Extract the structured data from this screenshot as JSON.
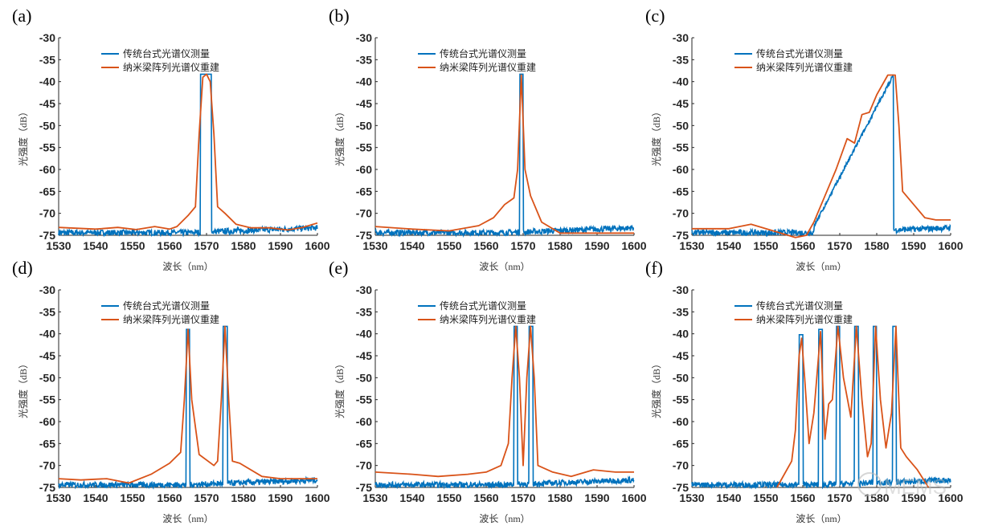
{
  "chart_data": [
    {
      "panel": "(a)",
      "type": "line",
      "xlabel": "波长（nm）",
      "ylabel": "光强度（dB）",
      "xlim": [
        1530,
        1600
      ],
      "ylim": [
        -75,
        -30
      ],
      "xticks": [
        1530,
        1540,
        1550,
        1560,
        1570,
        1580,
        1590,
        1600
      ],
      "yticks": [
        -30,
        -35,
        -40,
        -45,
        -50,
        -55,
        -60,
        -65,
        -70,
        -75
      ],
      "legend": [
        "传统台式光谱仪测量",
        "纳米梁阵列光谱仪重建"
      ],
      "legend_position": "top-center",
      "series": [
        {
          "name": "传统台式光谱仪测量",
          "color": "#0072BD",
          "noise_floor": [
            -74.4,
            -73.3
          ],
          "peaks": [
            [
              1568.3,
              1571.3,
              -38.3
            ]
          ]
        },
        {
          "name": "纳米梁阵列光谱仪重建",
          "color": "#D95319",
          "points": [
            [
              1530,
              -73.2
            ],
            [
              1540,
              -73.6
            ],
            [
              1546,
              -73.2
            ],
            [
              1551,
              -73.7
            ],
            [
              1556,
              -73
            ],
            [
              1560,
              -73.6
            ],
            [
              1562,
              -73
            ],
            [
              1565,
              -70.5
            ],
            [
              1567,
              -68.5
            ],
            [
              1568,
              -52
            ],
            [
              1569,
              -39
            ],
            [
              1570,
              -38.3
            ],
            [
              1571,
              -40
            ],
            [
              1572,
              -52
            ],
            [
              1573,
              -68.5
            ],
            [
              1575,
              -70
            ],
            [
              1578,
              -72.5
            ],
            [
              1582,
              -73.3
            ],
            [
              1587,
              -73.3
            ],
            [
              1592,
              -73.8
            ],
            [
              1596,
              -73.2
            ],
            [
              1600,
              -72.2
            ]
          ]
        }
      ]
    },
    {
      "panel": "(b)",
      "type": "line",
      "xlabel": "波长（nm）",
      "ylabel": "光强度（dB）",
      "xlim": [
        1530,
        1600
      ],
      "ylim": [
        -75,
        -30
      ],
      "xticks": [
        1530,
        1540,
        1550,
        1560,
        1570,
        1580,
        1590,
        1600
      ],
      "yticks": [
        -30,
        -35,
        -40,
        -45,
        -50,
        -55,
        -60,
        -65,
        -70,
        -75
      ],
      "legend": [
        "传统台式光谱仪测量",
        "纳米梁阵列光谱仪重建"
      ],
      "legend_position": "top-center",
      "series": [
        {
          "name": "传统台式光谱仪测量",
          "color": "#0072BD",
          "noise_floor": [
            -74.4,
            -73.3
          ],
          "peaks": [
            [
              1569,
              1570,
              -38.3
            ]
          ]
        },
        {
          "name": "纳米梁阵列光谱仪重建",
          "color": "#D95319",
          "points": [
            [
              1530,
              -73
            ],
            [
              1540,
              -73.6
            ],
            [
              1550,
              -74
            ],
            [
              1558,
              -72.8
            ],
            [
              1562,
              -71
            ],
            [
              1565,
              -68
            ],
            [
              1567.5,
              -66.5
            ],
            [
              1568.5,
              -60
            ],
            [
              1569.5,
              -38.5
            ],
            [
              1570.5,
              -60
            ],
            [
              1572,
              -66
            ],
            [
              1575,
              -72
            ],
            [
              1580,
              -74.5
            ],
            [
              1590,
              -74.5
            ],
            [
              1600,
              -74.5
            ]
          ]
        }
      ]
    },
    {
      "panel": "(c)",
      "type": "line",
      "xlabel": "波长（nm）",
      "ylabel": "光强度（dB）",
      "xlim": [
        1530,
        1600
      ],
      "ylim": [
        -75,
        -30
      ],
      "xticks": [
        1530,
        1540,
        1550,
        1560,
        1570,
        1580,
        1590,
        1600
      ],
      "yticks": [
        -30,
        -35,
        -40,
        -45,
        -50,
        -55,
        -60,
        -65,
        -70,
        -75
      ],
      "legend": [
        "传统台式光谱仪测量",
        "纳米梁阵列光谱仪重建"
      ],
      "legend_position": "top-center",
      "series": [
        {
          "name": "传统台式光谱仪测量",
          "color": "#0072BD",
          "noise_floor": [
            -74.4,
            -73.3
          ],
          "ramp": [
            1563,
            -73,
            1584.5,
            -38.5
          ]
        },
        {
          "name": "纳米梁阵列光谱仪重建",
          "color": "#D95319",
          "points": [
            [
              1530,
              -73.5
            ],
            [
              1540,
              -73.5
            ],
            [
              1546,
              -72.5
            ],
            [
              1552,
              -74
            ],
            [
              1558,
              -75.5
            ],
            [
              1561,
              -75
            ],
            [
              1563,
              -72
            ],
            [
              1566,
              -66
            ],
            [
              1569,
              -60
            ],
            [
              1572,
              -53
            ],
            [
              1574,
              -54
            ],
            [
              1576,
              -47.5
            ],
            [
              1578,
              -47
            ],
            [
              1580,
              -43
            ],
            [
              1583,
              -38.5
            ],
            [
              1585,
              -38.5
            ],
            [
              1586,
              -50
            ],
            [
              1587,
              -65
            ],
            [
              1590,
              -68
            ],
            [
              1593,
              -71
            ],
            [
              1596,
              -71.5
            ],
            [
              1600,
              -71.5
            ]
          ]
        }
      ]
    },
    {
      "panel": "(d)",
      "type": "line",
      "xlabel": "波长（nm）",
      "ylabel": "光强度（dB）",
      "xlim": [
        1530,
        1600
      ],
      "ylim": [
        -75,
        -30
      ],
      "xticks": [
        1530,
        1540,
        1550,
        1560,
        1570,
        1580,
        1590,
        1600
      ],
      "yticks": [
        -30,
        -35,
        -40,
        -45,
        -50,
        -55,
        -60,
        -65,
        -70,
        -75
      ],
      "legend": [
        "传统台式光谱仪测量",
        "纳米梁阵列光谱仪重建"
      ],
      "legend_position": "top-center",
      "series": [
        {
          "name": "传统台式光谱仪测量",
          "color": "#0072BD",
          "noise_floor": [
            -74.4,
            -73.3
          ],
          "peaks": [
            [
              1564.5,
              1565.5,
              -39
            ],
            [
              1574.5,
              1575.7,
              -38.3
            ]
          ]
        },
        {
          "name": "纳米梁阵列光谱仪重建",
          "color": "#D95319",
          "points": [
            [
              1530,
              -73
            ],
            [
              1536,
              -73.3
            ],
            [
              1543,
              -73
            ],
            [
              1549,
              -74
            ],
            [
              1555,
              -72
            ],
            [
              1560,
              -69.5
            ],
            [
              1563,
              -67
            ],
            [
              1564,
              -55
            ],
            [
              1565,
              -39
            ],
            [
              1566,
              -55
            ],
            [
              1568,
              -67.5
            ],
            [
              1572,
              -70
            ],
            [
              1573,
              -69
            ],
            [
              1574,
              -55
            ],
            [
              1575,
              -38.3
            ],
            [
              1576,
              -55
            ],
            [
              1577,
              -69
            ],
            [
              1579,
              -69.5
            ],
            [
              1585,
              -72.5
            ],
            [
              1590,
              -73
            ],
            [
              1600,
              -73
            ]
          ]
        }
      ]
    },
    {
      "panel": "(e)",
      "type": "line",
      "xlabel": "波长（nm）",
      "ylabel": "光强度（dB）",
      "xlim": [
        1530,
        1600
      ],
      "ylim": [
        -75,
        -30
      ],
      "xticks": [
        1530,
        1540,
        1550,
        1560,
        1570,
        1580,
        1590,
        1600
      ],
      "yticks": [
        -30,
        -35,
        -40,
        -45,
        -50,
        -55,
        -60,
        -65,
        -70,
        -75
      ],
      "legend": [
        "传统台式光谱仪测量",
        "纳米梁阵列光谱仪重建"
      ],
      "legend_position": "top-center",
      "series": [
        {
          "name": "传统台式光谱仪测量",
          "color": "#0072BD",
          "noise_floor": [
            -74.4,
            -73.3
          ],
          "peaks": [
            [
              1567.5,
              1568.5,
              -38.3
            ],
            [
              1571.6,
              1572.6,
              -38.3
            ]
          ]
        },
        {
          "name": "纳米梁阵列光谱仪重建",
          "color": "#D95319",
          "points": [
            [
              1530,
              -71.5
            ],
            [
              1540,
              -72
            ],
            [
              1547,
              -72.5
            ],
            [
              1555,
              -72
            ],
            [
              1560,
              -71.5
            ],
            [
              1564,
              -70
            ],
            [
              1566,
              -65
            ],
            [
              1567,
              -50
            ],
            [
              1568,
              -38.3
            ],
            [
              1569,
              -50
            ],
            [
              1570,
              -70
            ],
            [
              1571,
              -50
            ],
            [
              1572,
              -38.3
            ],
            [
              1573,
              -50
            ],
            [
              1574,
              -70
            ],
            [
              1578,
              -71.5
            ],
            [
              1583,
              -72.5
            ],
            [
              1589,
              -71
            ],
            [
              1595,
              -71.5
            ],
            [
              1600,
              -71.5
            ]
          ]
        }
      ]
    },
    {
      "panel": "(f)",
      "type": "line",
      "xlabel": "波长（nm）",
      "ylabel": "光强度（dB）",
      "xlim": [
        1530,
        1600
      ],
      "ylim": [
        -75,
        -30
      ],
      "xticks": [
        1530,
        1540,
        1550,
        1560,
        1570,
        1580,
        1590,
        1600
      ],
      "yticks": [
        -30,
        -35,
        -40,
        -45,
        -50,
        -55,
        -60,
        -65,
        -70,
        -75
      ],
      "legend": [
        "传统台式光谱仪测量",
        "纳米梁阵列光谱仪重建"
      ],
      "legend_position": "top-center",
      "series": [
        {
          "name": "传统台式光谱仪测量",
          "color": "#0072BD",
          "noise_floor": [
            -74.4,
            -73.3
          ],
          "peaks": [
            [
              1559,
              1560,
              -40.2
            ],
            [
              1564.3,
              1565.3,
              -39
            ],
            [
              1569,
              1570,
              -38.3
            ],
            [
              1574,
              1575,
              -38.3
            ],
            [
              1579,
              1580,
              -38.3
            ],
            [
              1584.3,
              1585.3,
              -38.3
            ]
          ]
        },
        {
          "name": "纳米梁阵列光谱仪重建",
          "color": "#D95319",
          "points": [
            [
              1553,
              -75
            ],
            [
              1557,
              -69
            ],
            [
              1558,
              -62
            ],
            [
              1559,
              -45
            ],
            [
              1559.7,
              -41
            ],
            [
              1560.5,
              -50
            ],
            [
              1561.7,
              -65
            ],
            [
              1563,
              -58
            ],
            [
              1564.8,
              -39.5
            ],
            [
              1566,
              -64
            ],
            [
              1567,
              -56
            ],
            [
              1568,
              -55
            ],
            [
              1569.5,
              -38.3
            ],
            [
              1571,
              -50
            ],
            [
              1573,
              -59
            ],
            [
              1574.5,
              -38.3
            ],
            [
              1576,
              -55
            ],
            [
              1577.5,
              -68
            ],
            [
              1578.5,
              -65
            ],
            [
              1579.7,
              -38.3
            ],
            [
              1581,
              -55
            ],
            [
              1582.5,
              -66
            ],
            [
              1584,
              -58
            ],
            [
              1585.2,
              -38.3
            ],
            [
              1586.5,
              -66
            ],
            [
              1588,
              -68
            ],
            [
              1591,
              -71
            ],
            [
              1594,
              -75
            ]
          ]
        }
      ]
    }
  ],
  "watermark": "MEMS"
}
